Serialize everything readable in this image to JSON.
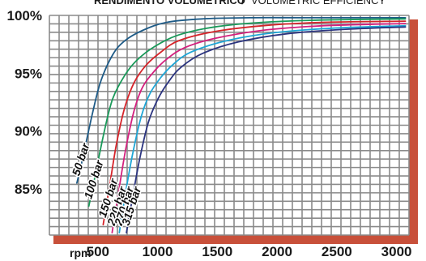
{
  "chart_data": {
    "type": "line",
    "title": "RENDIMENTO VOLUMETRICO",
    "title_separator": "/",
    "subtitle": "VOLUMETRIC EFFICIENCY",
    "xlabel": "rpm",
    "ylabel": "",
    "xlim": [
      0,
      3000
    ],
    "ylim": [
      81,
      100
    ],
    "x_ticks": [
      500,
      1000,
      1500,
      2000,
      2500,
      3000
    ],
    "x_tick_labels": [
      "500",
      "1000",
      "1500",
      "2000",
      "2500",
      "3000"
    ],
    "y_ticks": [
      85,
      90,
      95,
      100
    ],
    "y_tick_labels": [
      "85%",
      "90%",
      "95%",
      "100%"
    ],
    "grid": true,
    "frame_color": "#c8503a",
    "grid_color": "#8a8a8a",
    "series": [
      {
        "name": "50 bar",
        "color": "#1e5b87",
        "x": [
          250,
          300,
          380,
          450,
          550,
          650,
          800,
          1000,
          1300,
          1700,
          2200,
          3000
        ],
        "y": [
          85.5,
          87.7,
          91.5,
          94.3,
          96.6,
          97.8,
          98.7,
          99.4,
          99.7,
          99.8,
          99.8,
          99.8
        ]
      },
      {
        "name": "100 bar",
        "color": "#1a9a5a",
        "x": [
          350,
          400,
          480,
          550,
          650,
          750,
          900,
          1100,
          1400,
          1800,
          2300,
          3000
        ],
        "y": [
          83.5,
          86.0,
          90.0,
          92.8,
          94.8,
          96.1,
          97.3,
          98.3,
          99.0,
          99.4,
          99.6,
          99.7
        ]
      },
      {
        "name": "150 bar",
        "color": "#d6242a",
        "x": [
          470,
          520,
          580,
          650,
          730,
          830,
          950,
          1100,
          1400,
          1800,
          2300,
          3000
        ],
        "y": [
          81.9,
          85.0,
          88.8,
          92.0,
          94.2,
          95.7,
          96.8,
          97.8,
          98.6,
          99.1,
          99.4,
          99.5
        ]
      },
      {
        "name": "220 bar",
        "color": "#d4207e",
        "x": [
          545,
          600,
          660,
          730,
          800,
          900,
          1000,
          1150,
          1400,
          1800,
          2300,
          3000
        ],
        "y": [
          81.2,
          84.8,
          88.5,
          91.8,
          93.8,
          95.2,
          96.2,
          97.2,
          98.0,
          98.7,
          99.1,
          99.3
        ]
      },
      {
        "name": "270 bar",
        "color": "#1ea6d6",
        "x": [
          605,
          660,
          720,
          790,
          860,
          950,
          1050,
          1200,
          1500,
          1900,
          2400,
          3000
        ],
        "y": [
          81.2,
          84.8,
          88.2,
          91.3,
          93.2,
          94.6,
          95.7,
          96.8,
          97.8,
          98.5,
          98.9,
          99.1
        ]
      },
      {
        "name": "315 bar",
        "color": "#2c3580",
        "x": [
          665,
          720,
          780,
          850,
          930,
          1020,
          1120,
          1300,
          1600,
          2000,
          2500,
          3000
        ],
        "y": [
          81.2,
          84.5,
          87.8,
          90.8,
          92.8,
          94.3,
          95.5,
          96.7,
          97.7,
          98.4,
          98.8,
          99.0
        ]
      }
    ]
  }
}
